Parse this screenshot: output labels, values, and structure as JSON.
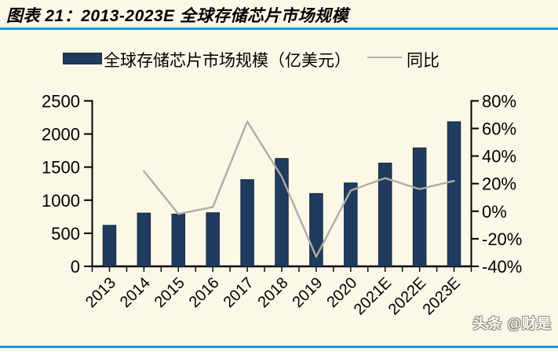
{
  "window": {
    "title": "图表 21：2013-2023E 全球存储芯片市场规模",
    "watermark": "头条 @财是"
  },
  "legend": {
    "bar_series_label": "全球存储芯片市场规模（亿美元）",
    "line_series_label": "同比"
  },
  "colors": {
    "background": "#FCF8E8",
    "bar_fill": "#1F3B5D",
    "bar_border": "#15283E",
    "line": "#AEACA6",
    "rule_blue": "#1899D6",
    "axis_text": "#000000",
    "watermark_fill": "#FFFDF2",
    "watermark_outline": "#8B8B84"
  },
  "chart_data": {
    "type": "bar",
    "title": "图表 21：2013-2023E 全球存储芯片市场规模",
    "categories": [
      "2013",
      "2014",
      "2015",
      "2016",
      "2017",
      "2018",
      "2019",
      "2020",
      "2021E",
      "2022E",
      "2023E"
    ],
    "series": [
      {
        "name": "全球存储芯片市场规模（亿美元）",
        "type": "bar",
        "yaxis": "left",
        "values": [
          620,
          805,
          790,
          810,
          1310,
          1630,
          1100,
          1260,
          1560,
          1790,
          2185
        ]
      },
      {
        "name": "同比",
        "type": "line",
        "yaxis": "right",
        "unit": "%",
        "values": [
          null,
          29,
          -2,
          3,
          65,
          25,
          -33,
          15,
          24,
          16,
          22
        ]
      }
    ],
    "left_axis": {
      "ticks": [
        2500,
        2000,
        1500,
        1000,
        500,
        0
      ],
      "range": [
        0,
        2500
      ]
    },
    "right_axis": {
      "ticks": [
        "80%",
        "60%",
        "40%",
        "20%",
        "0%",
        "-20%",
        "-40%"
      ],
      "range": [
        -40,
        80
      ]
    },
    "grid": false,
    "legend_position": "top"
  }
}
